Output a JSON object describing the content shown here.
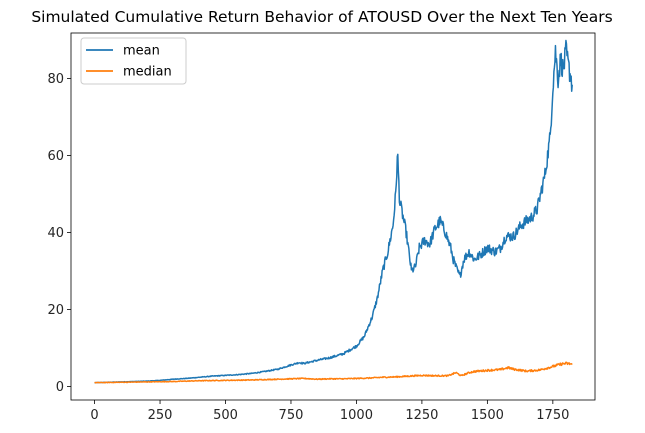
{
  "chart_data": {
    "type": "line",
    "title": "Simulated Cumulative Return Behavior of ATOUSD Over the Next Ten Years",
    "xlabel": "",
    "ylabel": "",
    "xlim": [
      -90,
      1911
    ],
    "ylim": [
      -3.5,
      91.8
    ],
    "xticks": [
      0,
      250,
      500,
      750,
      1000,
      1250,
      1500,
      1750
    ],
    "yticks": [
      0,
      20,
      40,
      60,
      80
    ],
    "grid": false,
    "legend": "top-left",
    "series": [
      {
        "name": "mean",
        "color": "#1f77b4",
        "x": [
          0,
          50,
          100,
          150,
          200,
          250,
          300,
          350,
          400,
          450,
          500,
          550,
          600,
          650,
          700,
          750,
          780,
          800,
          850,
          900,
          950,
          1000,
          1030,
          1060,
          1080,
          1100,
          1120,
          1140,
          1150,
          1157,
          1165,
          1175,
          1190,
          1210,
          1225,
          1240,
          1260,
          1280,
          1300,
          1320,
          1340,
          1360,
          1370,
          1380,
          1395,
          1410,
          1430,
          1450,
          1470,
          1500,
          1530,
          1550,
          1570,
          1600,
          1630,
          1650,
          1670,
          1690,
          1700,
          1720,
          1740,
          1750,
          1760,
          1770,
          1780,
          1790,
          1800,
          1810,
          1820,
          1825
        ],
        "y": [
          1.0,
          1.1,
          1.2,
          1.3,
          1.4,
          1.6,
          1.9,
          2.1,
          2.4,
          2.7,
          2.9,
          3.1,
          3.4,
          3.9,
          4.5,
          5.6,
          6.2,
          6.0,
          6.8,
          7.5,
          8.5,
          10.5,
          13.0,
          18.0,
          23.0,
          30.0,
          35.0,
          42.0,
          50.0,
          60.5,
          48.0,
          45.0,
          40.0,
          30.0,
          31.0,
          36.0,
          38.0,
          37.0,
          41.0,
          43.0,
          40.0,
          36.0,
          33.0,
          31.0,
          28.5,
          33.0,
          35.0,
          33.0,
          34.0,
          36.0,
          35.0,
          36.0,
          39.0,
          39.0,
          42.0,
          43.0,
          44.0,
          46.0,
          49.0,
          55.0,
          65.0,
          78.0,
          87.0,
          80.0,
          85.0,
          82.0,
          87.0,
          83.0,
          80.0,
          77.5
        ]
      },
      {
        "name": "median",
        "color": "#ff7f0e",
        "x": [
          0,
          100,
          200,
          300,
          400,
          500,
          600,
          700,
          750,
          800,
          850,
          900,
          950,
          1000,
          1050,
          1100,
          1150,
          1200,
          1250,
          1300,
          1350,
          1380,
          1400,
          1430,
          1450,
          1500,
          1550,
          1580,
          1600,
          1650,
          1700,
          1750,
          1780,
          1800,
          1825
        ],
        "y": [
          1.0,
          1.1,
          1.2,
          1.3,
          1.5,
          1.6,
          1.7,
          1.9,
          2.0,
          2.1,
          1.9,
          2.0,
          2.0,
          2.1,
          2.2,
          2.4,
          2.5,
          2.7,
          2.9,
          2.8,
          2.8,
          3.6,
          2.8,
          3.6,
          3.9,
          4.2,
          4.4,
          4.9,
          4.5,
          4.0,
          4.3,
          5.2,
          5.8,
          6.0,
          5.8
        ]
      }
    ]
  }
}
